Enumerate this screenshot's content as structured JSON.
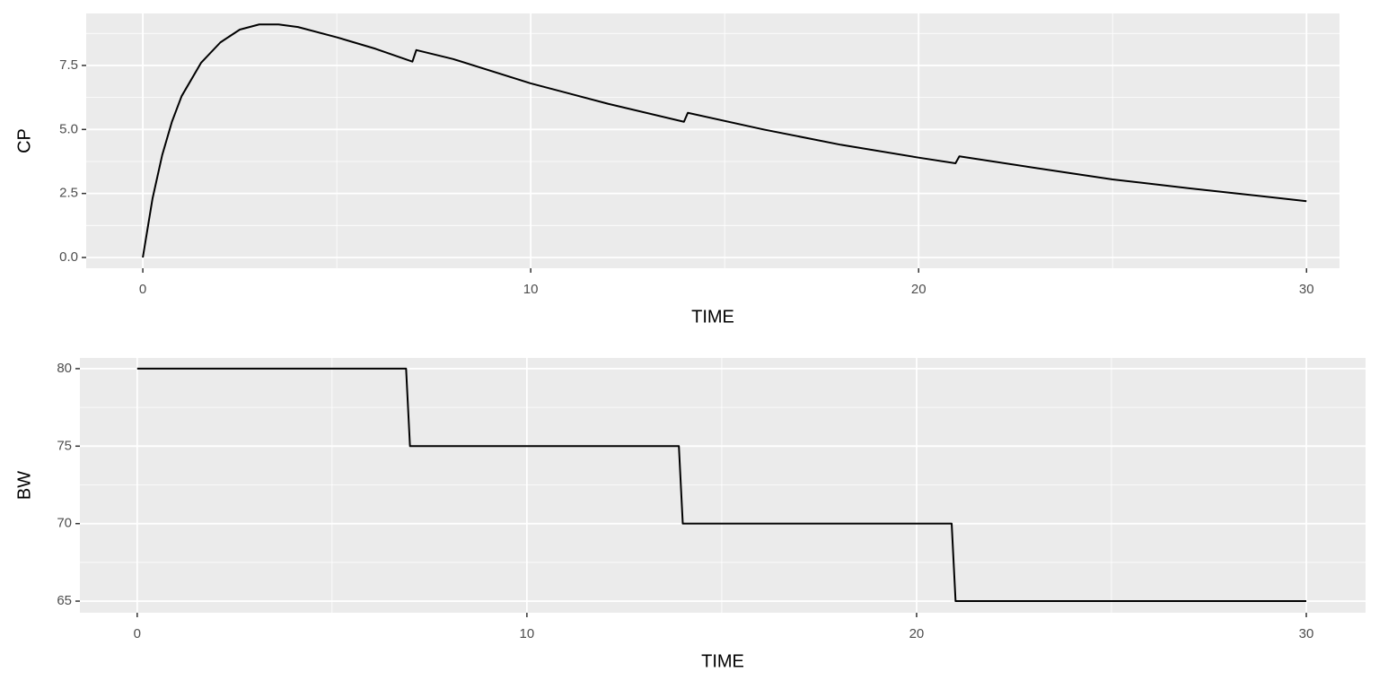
{
  "chart_data": [
    {
      "type": "line",
      "x_label": "TIME",
      "y_label": "CP",
      "color": "#000000",
      "grid": true,
      "minor_grid": true,
      "x": [
        0,
        0.25,
        0.5,
        0.75,
        1,
        1.5,
        2,
        2.5,
        3,
        3.5,
        4,
        5,
        6,
        6.95,
        7.05,
        8,
        10,
        12,
        13.95,
        14.05,
        16,
        18,
        20,
        20.95,
        21.05,
        23,
        25,
        27,
        30
      ],
      "values": [
        0,
        2.3,
        4.0,
        5.3,
        6.3,
        7.6,
        8.4,
        8.9,
        9.1,
        9.1,
        9.0,
        8.6,
        8.15,
        7.65,
        8.1,
        7.75,
        6.8,
        6.0,
        5.3,
        5.65,
        5.0,
        4.4,
        3.9,
        3.68,
        3.95,
        3.5,
        3.05,
        2.7,
        2.2
      ],
      "xlim": [
        -1.46,
        30.85
      ],
      "xticks": [
        0,
        10,
        20,
        30
      ],
      "ylim": [
        -0.42,
        9.53
      ],
      "yticks": [
        {
          "value": 0,
          "label": "0.0"
        },
        2.5,
        {
          "value": 5,
          "label": "5.0"
        },
        7.5
      ]
    },
    {
      "type": "line",
      "x_label": "TIME",
      "y_label": "BW",
      "color": "#000000",
      "grid": true,
      "minor_grid": true,
      "x": [
        0,
        6.9,
        7,
        13.9,
        14,
        20.9,
        21,
        30
      ],
      "values": [
        80,
        80,
        75,
        75,
        70,
        70,
        65,
        65
      ],
      "xlim": [
        -1.47,
        31.52
      ],
      "xticks": [
        0,
        10,
        20,
        30
      ],
      "ylim": [
        64.25,
        80.69
      ],
      "yticks": [
        65,
        70,
        75,
        80
      ]
    }
  ]
}
